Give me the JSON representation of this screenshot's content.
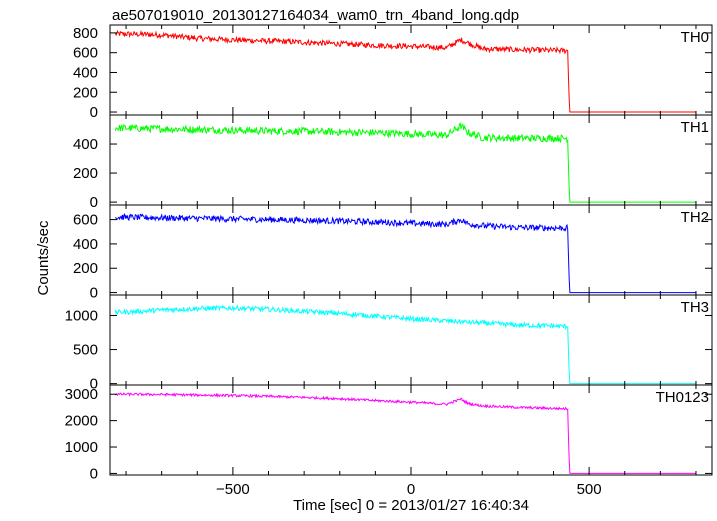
{
  "title": "ae507019010_20130127164034_wam0_trn_4band_long.qdp",
  "xlabel": "Time [sec] 0 = 2013/01/27 16:40:34",
  "ylabel": "Counts/sec",
  "chart_data": {
    "type": "line",
    "title": "ae507019010_20130127164034_wam0_trn_4band_long.qdp",
    "xlabel": "Time [sec] 0 = 2013/01/27 16:40:34",
    "ylabel": "Counts/sec",
    "xlim": [
      -845,
      845
    ],
    "xticks": [
      -500,
      0,
      500
    ],
    "xticklabels": [
      "−500",
      "0",
      "500"
    ],
    "panels": [
      {
        "name": "TH0",
        "color": "#ff0000",
        "ylim": [
          -30,
          880
        ],
        "yticks": [
          0,
          200,
          400,
          600,
          800
        ],
        "yticklabels": [
          "0",
          "200",
          "400",
          "600",
          "800"
        ],
        "x": [
          -800,
          -700,
          -600,
          -500,
          -400,
          -300,
          -200,
          -100,
          0,
          100,
          140,
          160,
          200,
          300,
          440,
          445,
          500,
          600,
          700,
          800
        ],
        "y": [
          790,
          780,
          745,
          730,
          718,
          705,
          690,
          675,
          665,
          650,
          730,
          700,
          640,
          630,
          620,
          0,
          0,
          0,
          0,
          0
        ],
        "noise": 28
      },
      {
        "name": "TH1",
        "color": "#00ff00",
        "ylim": [
          -20,
          600
        ],
        "yticks": [
          0,
          200,
          400
        ],
        "yticklabels": [
          "0",
          "200",
          "400"
        ],
        "x": [
          -800,
          -700,
          -600,
          -500,
          -400,
          -300,
          -200,
          -100,
          0,
          100,
          140,
          160,
          200,
          300,
          440,
          445,
          500,
          600,
          700,
          800
        ],
        "y": [
          510,
          505,
          500,
          495,
          490,
          488,
          482,
          478,
          470,
          460,
          525,
          480,
          445,
          440,
          440,
          0,
          0,
          0,
          0,
          0
        ],
        "noise": 25
      },
      {
        "name": "TH2",
        "color": "#0000ff",
        "ylim": [
          -20,
          720
        ],
        "yticks": [
          0,
          200,
          400,
          600
        ],
        "yticklabels": [
          "0",
          "200",
          "400",
          "600"
        ],
        "x": [
          -800,
          -700,
          -600,
          -500,
          -400,
          -300,
          -200,
          -100,
          0,
          100,
          140,
          160,
          200,
          300,
          440,
          445,
          500,
          600,
          700,
          800
        ],
        "y": [
          620,
          615,
          610,
          605,
          600,
          595,
          588,
          580,
          570,
          560,
          600,
          565,
          550,
          535,
          530,
          0,
          0,
          0,
          0,
          0
        ],
        "noise": 25
      },
      {
        "name": "TH3",
        "color": "#00ffff",
        "ylim": [
          -20,
          1300
        ],
        "yticks": [
          0,
          500,
          1000
        ],
        "yticklabels": [
          "0",
          "500",
          "1000"
        ],
        "x": [
          -800,
          -700,
          -600,
          -500,
          -400,
          -300,
          -200,
          -100,
          0,
          100,
          200,
          300,
          440,
          445,
          500,
          600,
          700,
          800
        ],
        "y": [
          1050,
          1080,
          1100,
          1110,
          1090,
          1060,
          1030,
          990,
          950,
          920,
          890,
          860,
          840,
          0,
          0,
          0,
          0,
          0
        ],
        "noise": 35
      },
      {
        "name": "TH0123",
        "color": "#ff00ff",
        "ylim": [
          -60,
          3350
        ],
        "yticks": [
          0,
          1000,
          2000,
          3000
        ],
        "yticklabels": [
          "0",
          "1000",
          "2000",
          "3000"
        ],
        "x": [
          -800,
          -700,
          -600,
          -500,
          -400,
          -300,
          -200,
          -100,
          0,
          100,
          140,
          160,
          200,
          300,
          440,
          445,
          500,
          600,
          700,
          800
        ],
        "y": [
          3000,
          2990,
          2970,
          2950,
          2920,
          2880,
          2830,
          2760,
          2700,
          2620,
          2820,
          2650,
          2560,
          2500,
          2450,
          0,
          0,
          0,
          0,
          0
        ],
        "noise": 45
      }
    ]
  }
}
